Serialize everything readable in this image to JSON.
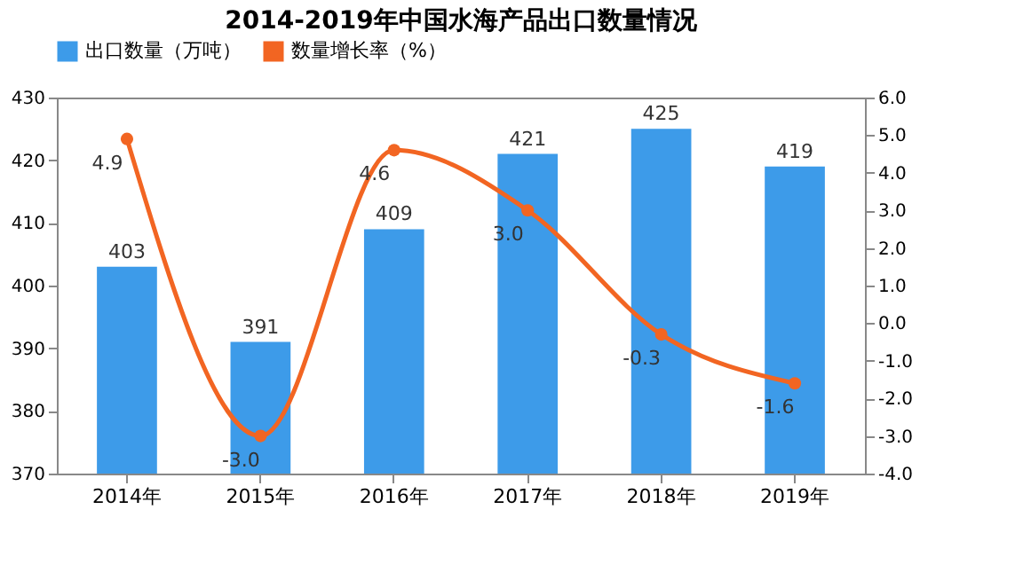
{
  "chart_data": {
    "type": "bar",
    "title": "2014-2019年中国水海产品出口数量情况",
    "categories": [
      "2014年",
      "2015年",
      "2016年",
      "2017年",
      "2018年",
      "2019年"
    ],
    "series": [
      {
        "name": "出口数量（万吨）",
        "color": "#3d9be9",
        "values": [
          403,
          391,
          409,
          421,
          425,
          419
        ]
      },
      {
        "name": "数量增长率（%）",
        "type": "line",
        "axis": "y2",
        "color": "#f26522",
        "values": [
          4.9,
          -3.0,
          4.6,
          3.0,
          -0.3,
          -1.6
        ],
        "value_labels": [
          "4.9",
          "-3.0",
          "4.6",
          "3.0",
          "-0.3",
          "-1.6"
        ]
      }
    ],
    "ylim": [
      370,
      430
    ],
    "yticks": [
      370,
      380,
      390,
      400,
      410,
      420,
      430
    ],
    "y2lim": [
      -4,
      6
    ],
    "y2ticks": [
      {
        "value": 6,
        "label": "6.0"
      },
      {
        "value": 5,
        "label": "5.0"
      },
      {
        "value": 4,
        "label": "4.0"
      },
      {
        "value": 3,
        "label": "3.0"
      },
      {
        "value": 2,
        "label": "2.0"
      },
      {
        "value": 1,
        "label": "1.0"
      },
      {
        "value": 0,
        "label": "0.0"
      },
      {
        "value": -1,
        "label": "-1.0"
      },
      {
        "value": -2,
        "label": "-2.0"
      },
      {
        "value": -3,
        "label": "-3.0"
      },
      {
        "value": -4,
        "label": "-4.0"
      }
    ],
    "data_labels": true,
    "legend": "top",
    "grid": false,
    "marker": "circle",
    "line_style": "solid"
  }
}
